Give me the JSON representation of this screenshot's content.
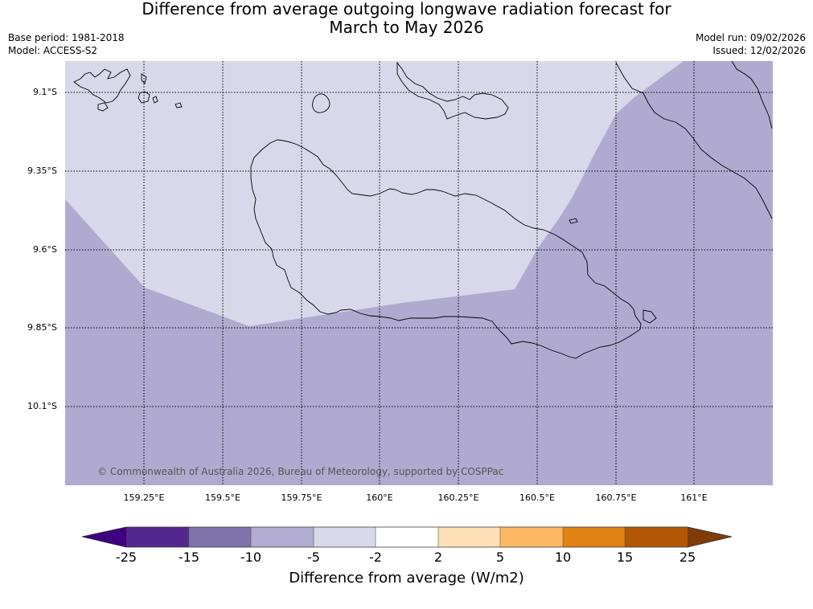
{
  "title": {
    "line1": "Difference from average outgoing longwave radiation forecast for",
    "line2": "March to May 2026"
  },
  "meta": {
    "base_period": "Base period: 1981-2018",
    "model": "Model: ACCESS-S2",
    "model_run": "Model run: 09/02/2026",
    "issued": "Issued: 12/02/2026"
  },
  "map": {
    "lat_labels": [
      "9.1°S",
      "9.35°S",
      "9.6°S",
      "9.85°S",
      "10.1°S"
    ],
    "lon_labels": [
      "159.25°E",
      "159.5°E",
      "159.75°E",
      "160°E",
      "160.25°E",
      "160.5°E",
      "160.75°E",
      "161°E"
    ],
    "copyright": "© Commonwealth of Australia 2026, Bureau of Meteorology, supported by COSPPac",
    "regions": {
      "light_class": "-5 to -2",
      "dark_class": "-10 to -5"
    }
  },
  "colorbar": {
    "label": "Difference from average (W/m2)",
    "ticks": [
      "-25",
      "-15",
      "-10",
      "-5",
      "-2",
      "2",
      "5",
      "10",
      "15",
      "25"
    ],
    "colors": [
      "#3f007d",
      "#54278f",
      "#8073ac",
      "#b2abd2",
      "#d8daeb",
      "#ffffff",
      "#fee0b6",
      "#fdb863",
      "#e08214",
      "#b35806",
      "#7f3b08"
    ]
  }
}
